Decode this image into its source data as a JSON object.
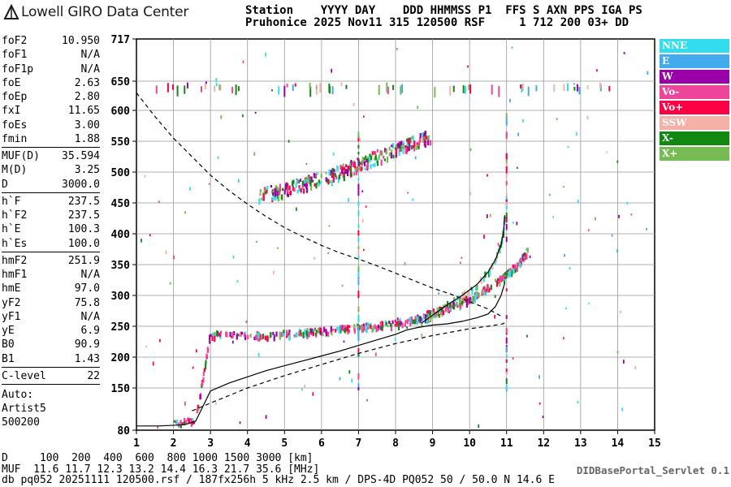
{
  "header": {
    "logo_text": "Lowell GIRO Data Center",
    "line1": "Station    YYYY DAY    DDD HHMMSS P1  FFS S AXN PPS IGA PS",
    "line2": "Pruhonice 2025 Nov11 315 120500 RSF     1 712 200 03+ DD"
  },
  "params": [
    [
      {
        "k": "foF2",
        "v": "10.950"
      },
      {
        "k": "foF1",
        "v": "N/A"
      },
      {
        "k": "foF1p",
        "v": "N/A"
      },
      {
        "k": "foE",
        "v": "2.63"
      },
      {
        "k": "foEp",
        "v": "2.80"
      },
      {
        "k": "fxI",
        "v": "11.65"
      },
      {
        "k": "foEs",
        "v": "3.00"
      },
      {
        "k": "fmin",
        "v": "1.88"
      }
    ],
    [
      {
        "k": "MUF(D)",
        "v": "35.594"
      },
      {
        "k": "M(D)",
        "v": "3.25"
      },
      {
        "k": "D",
        "v": "3000.0"
      }
    ],
    [
      {
        "k": "h`F",
        "v": "237.5"
      },
      {
        "k": "h`F2",
        "v": "237.5"
      },
      {
        "k": "h`E",
        "v": "100.3"
      },
      {
        "k": "h`Es",
        "v": "100.0"
      }
    ],
    [
      {
        "k": "hmF2",
        "v": "251.9"
      },
      {
        "k": "hmF1",
        "v": "N/A"
      },
      {
        "k": "hmE",
        "v": "97.0"
      },
      {
        "k": "yF2",
        "v": "75.8"
      },
      {
        "k": "yF1",
        "v": "N/A"
      },
      {
        "k": "yE",
        "v": "6.9"
      },
      {
        "k": "B0",
        "v": "90.9"
      },
      {
        "k": "B1",
        "v": "1.43"
      }
    ],
    [
      {
        "k": "C-level",
        "v": "22"
      }
    ]
  ],
  "auto": {
    "l1": "Auto:",
    "l2": "Artist5",
    "l3": "500200"
  },
  "legend": [
    {
      "label": "NNE",
      "color": "#33ddee"
    },
    {
      "label": "E",
      "color": "#44aaee"
    },
    {
      "label": "W",
      "color": "#9900aa"
    },
    {
      "label": "Vo-",
      "color": "#ee4499"
    },
    {
      "label": "Vo+",
      "color": "#ff0044"
    },
    {
      "label": "SSW",
      "color": "#f5b0a8"
    },
    {
      "label": "X-",
      "color": "#118811"
    },
    {
      "label": "X+",
      "color": "#77bb55"
    }
  ],
  "bottom": {
    "d_row": "D     100  200  400  600  800 1000 1500 3000 [km]",
    "muf_row": "MUF  11.6 11.7 12.3 13.2 14.4 16.3 21.7 35.6 [MHz]",
    "footer": "db pq052 20251111 120500.rsf / 187fx256h 5 kHz 2.5 km / DPS-4D PQ052 50 / 50.0 N 14.6 E",
    "servlet": "DIDBasePortal_Servlet 0.1"
  },
  "chart_data": {
    "type": "scatter",
    "title": "",
    "xlabel": "",
    "ylabel": "",
    "xlim": [
      1,
      15
    ],
    "ylim": [
      80,
      717
    ],
    "x_ticks": [
      "1",
      "2",
      "3",
      "4",
      "5",
      "6",
      "7",
      "8",
      "9",
      "10",
      "11",
      "12",
      "13",
      "14",
      "15"
    ],
    "y_ticks": [
      "80",
      "150",
      "200",
      "250",
      "300",
      "350",
      "400",
      "450",
      "500",
      "550",
      "600",
      "650",
      "717"
    ],
    "grid": true,
    "legend_position": "right",
    "ordinary_trace": {
      "x": [
        2.0,
        2.6,
        3.0,
        4.0,
        5.0,
        5.5,
        6.0,
        6.5,
        7.0,
        7.5,
        8.0,
        8.5,
        8.9,
        9.3,
        9.7,
        10.1,
        10.5,
        10.9,
        11.3,
        11.6
      ],
      "y": [
        95,
        95,
        238,
        236,
        238,
        240,
        243,
        246,
        248,
        251,
        255,
        260,
        270,
        278,
        288,
        298,
        312,
        330,
        350,
        375
      ]
    },
    "ordinary_upper_trace": {
      "x": [
        4.3,
        5.0,
        5.5,
        6.0,
        6.5,
        7.0,
        7.5,
        8.0,
        8.5,
        9.0
      ],
      "y": [
        465,
        470,
        480,
        490,
        500,
        512,
        524,
        536,
        548,
        560
      ]
    },
    "profile_solid": {
      "x": [
        1.0,
        1.6,
        2.3,
        2.6,
        3.0,
        3.5,
        4.0,
        4.5,
        5.0,
        5.5,
        6.0,
        6.5,
        7.0,
        7.5,
        8.0,
        8.3,
        8.6,
        9.0,
        9.4,
        9.8,
        10.2,
        10.5,
        10.7,
        10.85,
        10.95
      ],
      "y": [
        87,
        87,
        89,
        95,
        145,
        158,
        168,
        178,
        186,
        194,
        202,
        210,
        219,
        228,
        237,
        244,
        248,
        252,
        254,
        258,
        264,
        270,
        282,
        300,
        320
      ]
    },
    "profile_solid_upper": {
      "x": [
        8.7,
        9.0,
        9.4,
        9.8,
        10.2,
        10.5,
        10.7,
        10.85,
        10.92,
        10.95
      ],
      "y": [
        255,
        268,
        285,
        300,
        318,
        338,
        358,
        382,
        405,
        430
      ]
    },
    "profile_dashed": {
      "x": [
        1.0,
        1.5,
        2.0,
        2.5,
        3.0,
        3.5,
        4.0,
        4.5,
        5.0,
        5.5,
        6.0,
        6.5,
        7.0,
        7.5,
        8.0,
        8.5,
        9.0,
        9.5,
        10.0,
        10.5,
        10.9
      ],
      "y": [
        630,
        590,
        555,
        525,
        495,
        470,
        448,
        428,
        410,
        395,
        381,
        369,
        359,
        348,
        336,
        324,
        312,
        302,
        290,
        278,
        265
      ]
    },
    "profile_lower_dashed": {
      "x": [
        2.5,
        3.0,
        4.0,
        5.0,
        6.0,
        7.0,
        8.0,
        9.0,
        10.0,
        10.5,
        10.9,
        11.0
      ],
      "y": [
        112,
        125,
        150,
        170,
        188,
        206,
        222,
        235,
        246,
        250,
        254,
        258
      ]
    }
  }
}
